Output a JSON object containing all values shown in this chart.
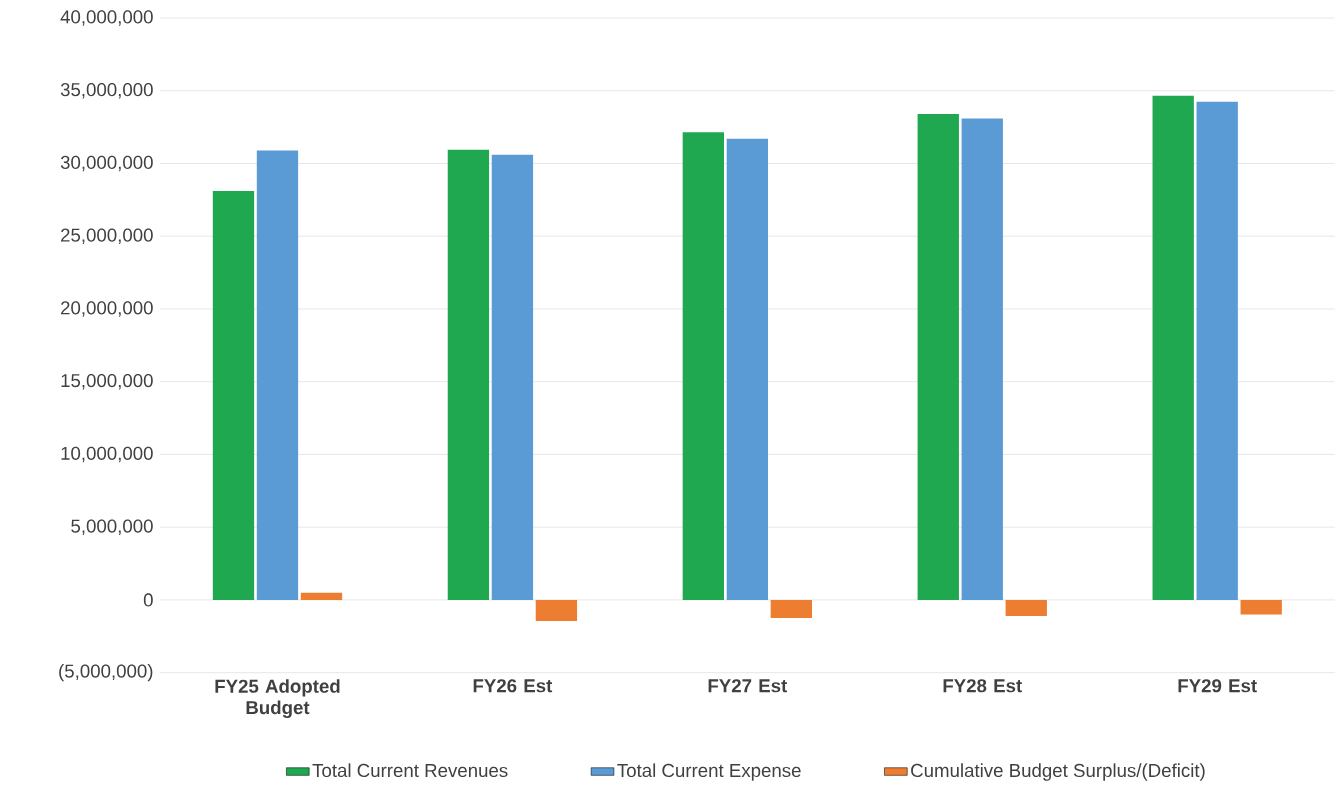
{
  "chart_data": {
    "type": "bar",
    "categories": [
      "FY25 Adopted Budget",
      "FY26 Est",
      "FY27 Est",
      "FY28 Est",
      "FY29 Est"
    ],
    "series": [
      {
        "name": "Total Current Revenues",
        "color": "#1fa84f",
        "values": [
          28100000,
          30950000,
          32150000,
          33400000,
          34650000
        ]
      },
      {
        "name": "Total Current Expense",
        "color": "#5b9bd5",
        "values": [
          30900000,
          30600000,
          31700000,
          33100000,
          34250000
        ]
      },
      {
        "name": "Cumulative Budget Surplus/(Deficit)",
        "color": "#ed7d31",
        "values": [
          500000,
          -1450000,
          -1250000,
          -1100000,
          -1000000
        ]
      }
    ],
    "ylim": [
      -5000000,
      40000000
    ],
    "yticks": [
      {
        "value": -5000000,
        "label": "(5,000,000)"
      },
      {
        "value": 0,
        "label": "0"
      },
      {
        "value": 5000000,
        "label": "5,000,000"
      },
      {
        "value": 10000000,
        "label": "10,000,000"
      },
      {
        "value": 15000000,
        "label": "15,000,000"
      },
      {
        "value": 20000000,
        "label": "20,000,000"
      },
      {
        "value": 25000000,
        "label": "25,000,000"
      },
      {
        "value": 30000000,
        "label": "30,000,000"
      },
      {
        "value": 35000000,
        "label": "35,000,000"
      },
      {
        "value": 40000000,
        "label": "40,000,000"
      }
    ],
    "grid": "y",
    "legend": "bottom"
  }
}
